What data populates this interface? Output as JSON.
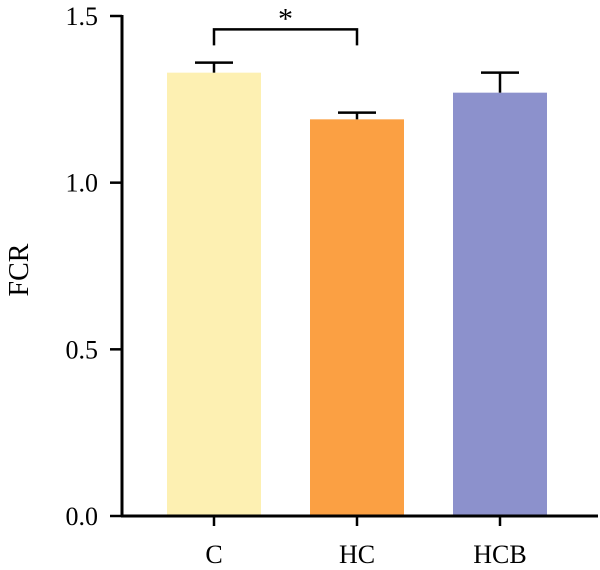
{
  "chart_data": {
    "type": "bar",
    "categories": [
      "C",
      "HC",
      "HCB"
    ],
    "values": [
      1.33,
      1.19,
      1.27
    ],
    "errors": [
      0.03,
      0.02,
      0.06
    ],
    "colors": [
      "#FDF0B2",
      "#FBA043",
      "#8C91CC"
    ],
    "title": "",
    "xlabel": "",
    "ylabel": "FCR",
    "ylim": [
      0,
      1.5
    ],
    "yticks": [
      0.0,
      0.5,
      1.0,
      1.5
    ],
    "ytick_labels": [
      "0.0",
      "0.5",
      "1.0",
      "1.5"
    ],
    "grid": false,
    "legend": false,
    "annotations": [
      {
        "text": "*",
        "between": [
          "C",
          "HC"
        ],
        "y": 1.46
      }
    ]
  }
}
